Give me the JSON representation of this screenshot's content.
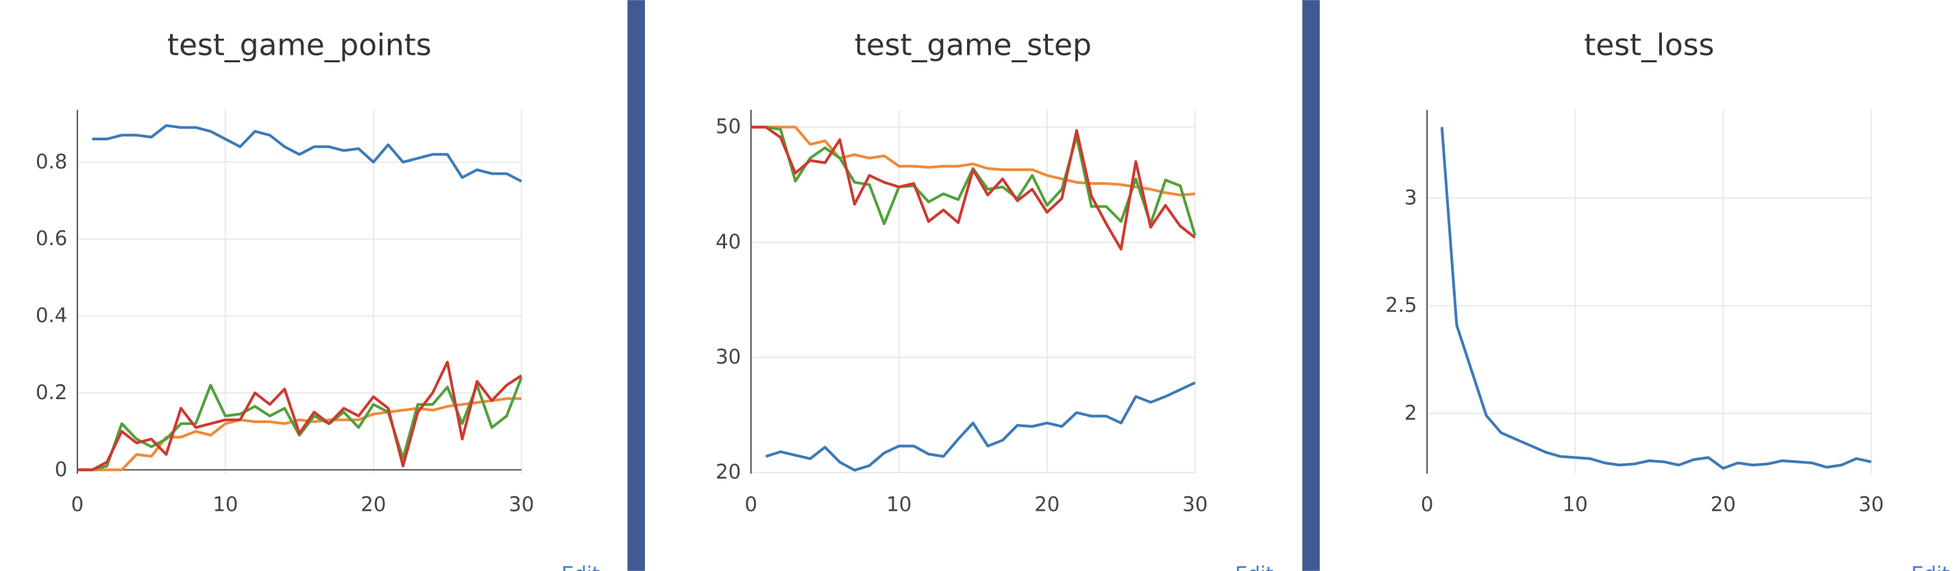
{
  "chart_data": [
    {
      "type": "line",
      "title": "test_game_points",
      "x": [
        0,
        1,
        2,
        3,
        4,
        5,
        6,
        7,
        8,
        9,
        10,
        11,
        12,
        13,
        14,
        15,
        16,
        17,
        18,
        19,
        20,
        21,
        22,
        23,
        24,
        25,
        26,
        27,
        28,
        29,
        30
      ],
      "series": [
        {
          "color": "#3d7ab8",
          "values": [
            null,
            0.86,
            0.86,
            0.87,
            0.87,
            0.865,
            0.895,
            0.89,
            0.89,
            0.88,
            0.86,
            0.84,
            0.88,
            0.87,
            0.84,
            0.82,
            0.84,
            0.84,
            0.83,
            0.835,
            0.8,
            0.845,
            0.8,
            0.81,
            0.82,
            0.82,
            0.76,
            0.78,
            0.77,
            0.77,
            0.75
          ]
        },
        {
          "color": "#ef8a3a",
          "values": [
            0,
            0,
            0,
            0,
            0.04,
            0.035,
            0.085,
            0.085,
            0.1,
            0.09,
            0.12,
            0.13,
            0.125,
            0.125,
            0.12,
            0.13,
            0.125,
            0.13,
            0.13,
            0.13,
            0.145,
            0.15,
            0.155,
            0.16,
            0.155,
            0.165,
            0.17,
            0.175,
            0.18,
            0.185,
            0.185
          ]
        },
        {
          "color": "#52a03a",
          "values": [
            0,
            0,
            0.01,
            0.12,
            0.08,
            0.06,
            0.08,
            0.12,
            0.12,
            0.22,
            0.14,
            0.145,
            0.165,
            0.14,
            0.16,
            0.09,
            0.14,
            0.12,
            0.15,
            0.11,
            0.17,
            0.15,
            0.03,
            0.17,
            0.17,
            0.215,
            0.12,
            0.22,
            0.11,
            0.14,
            0.24
          ]
        },
        {
          "color": "#cc3a30",
          "values": [
            0,
            0,
            0.02,
            0.1,
            0.07,
            0.08,
            0.04,
            0.16,
            0.11,
            0.12,
            0.13,
            0.13,
            0.2,
            0.17,
            0.21,
            0.095,
            0.15,
            0.12,
            0.16,
            0.14,
            0.19,
            0.16,
            0.01,
            0.15,
            0.2,
            0.28,
            0.08,
            0.23,
            0.18,
            0.22,
            0.245
          ]
        }
      ],
      "xlim": [
        0,
        30
      ],
      "xticks": [
        0,
        10,
        20,
        30
      ],
      "ylim": [
        -0.01,
        0.936
      ],
      "yticks": [
        0,
        0.2,
        0.4,
        0.6,
        0.8
      ],
      "grid": true
    },
    {
      "type": "line",
      "title": "test_game_step",
      "x": [
        0,
        1,
        2,
        3,
        4,
        5,
        6,
        7,
        8,
        9,
        10,
        11,
        12,
        13,
        14,
        15,
        16,
        17,
        18,
        19,
        20,
        21,
        22,
        23,
        24,
        25,
        26,
        27,
        28,
        29,
        30
      ],
      "series": [
        {
          "color": "#3d7ab8",
          "values": [
            null,
            21.4,
            21.8,
            21.5,
            21.2,
            22.2,
            20.9,
            20.2,
            20.6,
            21.7,
            22.3,
            22.3,
            21.6,
            21.4,
            22.9,
            24.3,
            22.3,
            22.8,
            24.1,
            24.0,
            24.3,
            24.0,
            25.2,
            24.9,
            24.9,
            24.3,
            26.6,
            26.1,
            26.6,
            27.2,
            27.8
          ]
        },
        {
          "color": "#ef8a3a",
          "values": [
            50,
            50,
            50,
            50,
            48.5,
            48.8,
            47.3,
            47.6,
            47.3,
            47.5,
            46.6,
            46.6,
            46.5,
            46.6,
            46.6,
            46.8,
            46.4,
            46.3,
            46.3,
            46.3,
            45.8,
            45.5,
            45.2,
            45.1,
            45.1,
            45.0,
            44.8,
            44.6,
            44.3,
            44.1,
            44.2
          ]
        },
        {
          "color": "#52a03a",
          "values": [
            50,
            50,
            49.8,
            45.3,
            47.3,
            48.2,
            47.3,
            45.2,
            45.0,
            41.6,
            44.8,
            44.9,
            43.5,
            44.2,
            43.7,
            46.4,
            44.6,
            44.8,
            43.8,
            45.8,
            43.2,
            44.6,
            49.2,
            43.1,
            43.1,
            41.8,
            45.5,
            41.6,
            45.4,
            44.9,
            40.6
          ]
        },
        {
          "color": "#cc3a30",
          "values": [
            50,
            50,
            49.1,
            46.0,
            47.1,
            46.9,
            48.9,
            43.3,
            45.8,
            45.2,
            44.8,
            45.1,
            41.8,
            42.8,
            41.7,
            46.3,
            44.1,
            45.5,
            43.6,
            44.6,
            42.6,
            43.8,
            49.7,
            44.0,
            41.6,
            39.4,
            47.0,
            41.3,
            43.2,
            41.4,
            40.4
          ]
        }
      ],
      "xlim": [
        0,
        30
      ],
      "xticks": [
        0,
        10,
        20,
        30
      ],
      "ylim": [
        19.9,
        51.5
      ],
      "yticks": [
        20,
        30,
        40,
        50
      ],
      "grid": true
    },
    {
      "type": "line",
      "title": "test_loss",
      "x": [
        0,
        1,
        2,
        3,
        4,
        5,
        6,
        7,
        8,
        9,
        10,
        11,
        12,
        13,
        14,
        15,
        16,
        17,
        18,
        19,
        20,
        21,
        22,
        23,
        24,
        25,
        26,
        27,
        28,
        29,
        30
      ],
      "series": [
        {
          "color": "#3d7ab8",
          "values": [
            null,
            3.33,
            2.41,
            2.2,
            1.99,
            1.91,
            1.88,
            1.85,
            1.82,
            1.8,
            1.795,
            1.79,
            1.77,
            1.76,
            1.765,
            1.78,
            1.775,
            1.76,
            1.785,
            1.795,
            1.745,
            1.77,
            1.76,
            1.765,
            1.78,
            1.775,
            1.77,
            1.75,
            1.76,
            1.79,
            1.775
          ]
        }
      ],
      "xlim": [
        0,
        30
      ],
      "xticks": [
        0,
        10,
        20,
        30
      ],
      "ylim": [
        1.72,
        3.41
      ],
      "yticks": [
        2,
        2.5,
        3
      ],
      "grid": true
    }
  ],
  "edit_links": [
    "Edit",
    "Edit",
    "Edit"
  ]
}
